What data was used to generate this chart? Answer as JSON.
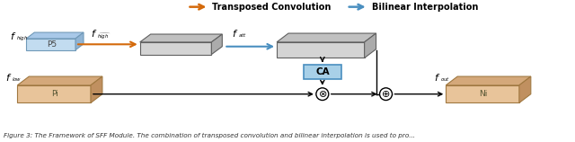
{
  "bg_color": "#ffffff",
  "legend_orange": "Transposed Convolution",
  "legend_blue": "Bilinear Interpolation",
  "orange_color": "#D4690A",
  "blue_color": "#4A8FC0",
  "box_blue_face": "#C2DCF0",
  "box_blue_top": "#A8C8E8",
  "box_blue_side": "#90B4D4",
  "box_blue_edge": "#7099B8",
  "box_gray_face": "#D4D4D4",
  "box_gray_top": "#C0C0C0",
  "box_gray_side": "#ABABAB",
  "box_gray_edge": "#606060",
  "box_tan_face": "#E8C49A",
  "box_tan_top": "#D4A87A",
  "box_tan_side": "#C09060",
  "box_tan_edge": "#A07840",
  "ca_face": "#A8D0E8",
  "ca_edge": "#4A8FC0",
  "caption": "igure 3: The Framework of SFF Module. The combination of transposed convolution and bilinear interpolation is used to pro..."
}
